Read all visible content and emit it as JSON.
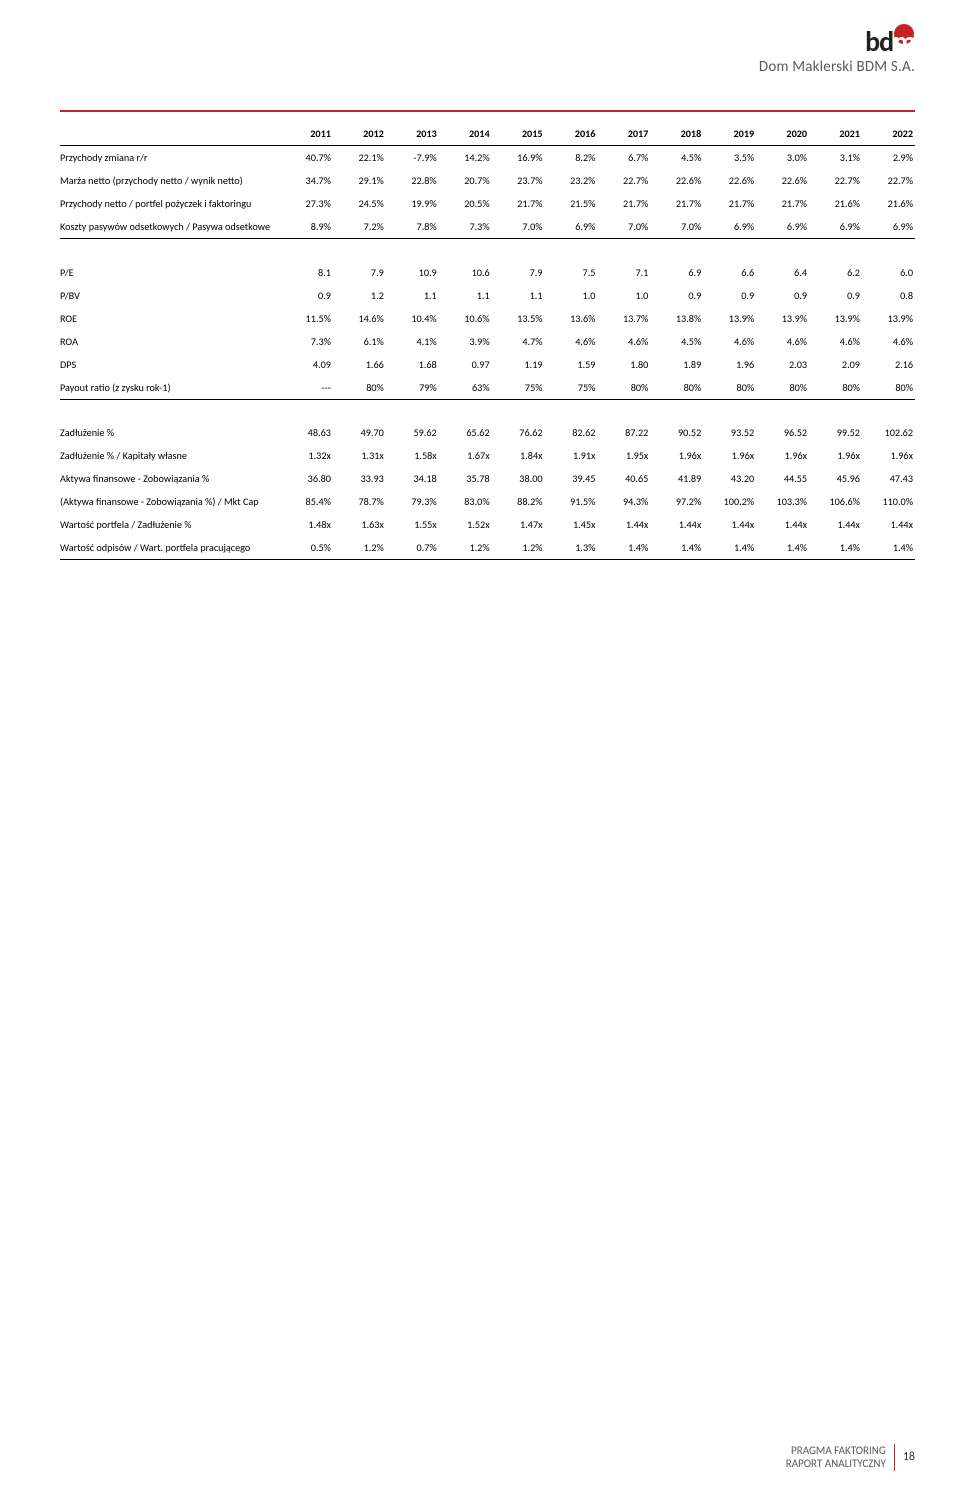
{
  "logo": {
    "text_bd": "bd",
    "text_m": "m",
    "subtitle": "Dom Maklerski BDM S.A."
  },
  "years": [
    "2011",
    "2012",
    "2013",
    "2014",
    "2015",
    "2016",
    "2017",
    "2018",
    "2019",
    "2020",
    "2021",
    "2022"
  ],
  "sections": [
    {
      "rows": [
        {
          "label": "Przychody zmiana r/r",
          "v": [
            "40.7%",
            "22.1%",
            "-7.9%",
            "14.2%",
            "16.9%",
            "8.2%",
            "6.7%",
            "4.5%",
            "3.5%",
            "3.0%",
            "3.1%",
            "2.9%"
          ]
        },
        {
          "label": "Marża netto (przychody netto / wynik netto)",
          "v": [
            "34.7%",
            "29.1%",
            "22.8%",
            "20.7%",
            "23.7%",
            "23.2%",
            "22.7%",
            "22.6%",
            "22.6%",
            "22.6%",
            "22.7%",
            "22.7%"
          ]
        },
        {
          "label": "Przychody netto / portfel pożyczek i faktoringu",
          "v": [
            "27.3%",
            "24.5%",
            "19.9%",
            "20.5%",
            "21.7%",
            "21.5%",
            "21.7%",
            "21.7%",
            "21.7%",
            "21.7%",
            "21.6%",
            "21.6%"
          ]
        },
        {
          "label": "Koszty pasywów odsetkowych / Pasywa odsetkowe",
          "v": [
            "8.9%",
            "7.2%",
            "7.8%",
            "7.3%",
            "7.0%",
            "6.9%",
            "7.0%",
            "7.0%",
            "6.9%",
            "6.9%",
            "6.9%",
            "6.9%"
          ]
        }
      ]
    },
    {
      "rows": [
        {
          "label": "P/E",
          "v": [
            "8.1",
            "7.9",
            "10.9",
            "10.6",
            "7.9",
            "7.5",
            "7.1",
            "6.9",
            "6.6",
            "6.4",
            "6.2",
            "6.0"
          ]
        },
        {
          "label": "P/BV",
          "v": [
            "0.9",
            "1.2",
            "1.1",
            "1.1",
            "1.1",
            "1.0",
            "1.0",
            "0.9",
            "0.9",
            "0.9",
            "0.9",
            "0.8"
          ]
        },
        {
          "label": "ROE",
          "v": [
            "11.5%",
            "14.6%",
            "10.4%",
            "10.6%",
            "13.5%",
            "13.6%",
            "13.7%",
            "13.8%",
            "13.9%",
            "13.9%",
            "13.9%",
            "13.9%"
          ]
        },
        {
          "label": "ROA",
          "v": [
            "7.3%",
            "6.1%",
            "4.1%",
            "3.9%",
            "4.7%",
            "4.6%",
            "4.6%",
            "4.5%",
            "4.6%",
            "4.6%",
            "4.6%",
            "4.6%"
          ]
        },
        {
          "label": "DPS",
          "v": [
            "4.09",
            "1.66",
            "1.68",
            "0.97",
            "1.19",
            "1.59",
            "1.80",
            "1.89",
            "1.96",
            "2.03",
            "2.09",
            "2.16"
          ]
        },
        {
          "label": "Payout ratio (z zysku rok-1)",
          "v": [
            "---",
            "80%",
            "79%",
            "63%",
            "75%",
            "75%",
            "80%",
            "80%",
            "80%",
            "80%",
            "80%",
            "80%"
          ]
        }
      ]
    },
    {
      "rows": [
        {
          "label": "Zadłużenie %",
          "v": [
            "48.63",
            "49.70",
            "59.62",
            "65.62",
            "76.62",
            "82.62",
            "87.22",
            "90.52",
            "93.52",
            "96.52",
            "99.52",
            "102.62"
          ]
        },
        {
          "label": "Zadłużenie % / Kapitały własne",
          "v": [
            "1.32x",
            "1.31x",
            "1.58x",
            "1.67x",
            "1.84x",
            "1.91x",
            "1.95x",
            "1.96x",
            "1.96x",
            "1.96x",
            "1.96x",
            "1.96x"
          ]
        },
        {
          "label": "Aktywa finansowe - Zobowiązania %",
          "v": [
            "36.80",
            "33.93",
            "34.18",
            "35.78",
            "38.00",
            "39.45",
            "40.65",
            "41.89",
            "43.20",
            "44.55",
            "45.96",
            "47.43"
          ]
        },
        {
          "label": "(Aktywa finansowe - Zobowiązania %) / Mkt Cap",
          "v": [
            "85.4%",
            "78.7%",
            "79.3%",
            "83.0%",
            "88.2%",
            "91.5%",
            "94.3%",
            "97.2%",
            "100.2%",
            "103.3%",
            "106.6%",
            "110.0%"
          ]
        },
        {
          "label": "Wartość portfela / Zadłużenie %",
          "v": [
            "1.48x",
            "1.63x",
            "1.55x",
            "1.52x",
            "1.47x",
            "1.45x",
            "1.44x",
            "1.44x",
            "1.44x",
            "1.44x",
            "1.44x",
            "1.44x"
          ]
        },
        {
          "label": "Wartość odpisów / Wart. portfela pracującego",
          "v": [
            "0.5%",
            "1.2%",
            "0.7%",
            "1.2%",
            "1.2%",
            "1.3%",
            "1.4%",
            "1.4%",
            "1.4%",
            "1.4%",
            "1.4%",
            "1.4%"
          ]
        }
      ]
    }
  ],
  "footer": {
    "line1": "PRAGMA FAKTORING",
    "line2": "RAPORT ANALITYCZNY",
    "page": "18"
  }
}
